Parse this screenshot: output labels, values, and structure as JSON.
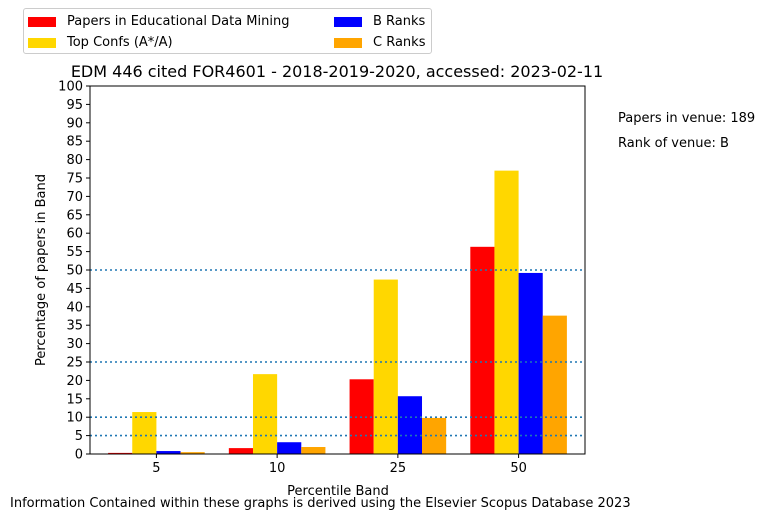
{
  "chart_data": {
    "type": "bar",
    "title": "EDM 446 cited FOR4601 - 2018-2019-2020, accessed: 2023-02-11",
    "xlabel": "Percentile Band",
    "ylabel": "Percentage of papers in Band",
    "ylim": [
      0,
      100
    ],
    "yticks": [
      0,
      5,
      10,
      15,
      20,
      25,
      30,
      35,
      40,
      45,
      50,
      55,
      60,
      65,
      70,
      75,
      80,
      85,
      90,
      95,
      100
    ],
    "categories": [
      "5",
      "10",
      "25",
      "50"
    ],
    "series": [
      {
        "name": "Papers in Educational Data Mining",
        "color": "#ff0000",
        "values": [
          0.3,
          1.6,
          20.3,
          56.3
        ]
      },
      {
        "name": "Top Confs (A*/A)",
        "color": "#ffd700",
        "values": [
          11.4,
          21.7,
          47.4,
          77.0
        ]
      },
      {
        "name": "B Ranks",
        "color": "#0000ff",
        "values": [
          0.8,
          3.2,
          15.7,
          49.2
        ]
      },
      {
        "name": "C Ranks",
        "color": "#ffa500",
        "values": [
          0.5,
          1.9,
          9.8,
          37.6
        ]
      }
    ],
    "reference_lines": [
      5,
      10,
      25,
      50
    ],
    "reference_line_color": "#1f77b4",
    "legend_placement": "top-left, above plot",
    "grid": false
  },
  "annotations": {
    "papers_in_venue": "Papers in venue: 189",
    "rank_of_venue": "Rank of venue: B"
  },
  "footer": "Information Contained within these graphs is derived using the Elsevier Scopus Database 2023"
}
